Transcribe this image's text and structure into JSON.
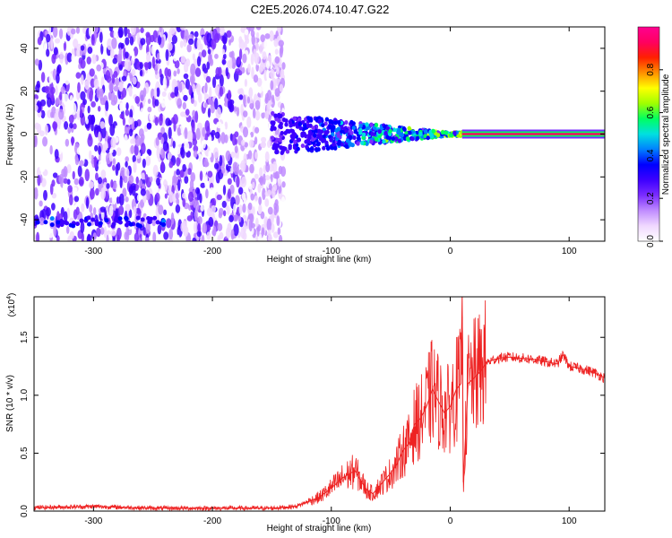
{
  "title": "C2E5.2026.074.10.47.G22",
  "colors": {
    "snr_line": "#ee2222",
    "frame": "#000000",
    "colorbar": [
      "#ffffff",
      "#f0d8ff",
      "#c08cff",
      "#7a2cff",
      "#3d00ff",
      "#0000ff",
      "#0080ff",
      "#00e0e0",
      "#00ff60",
      "#a0ff00",
      "#ffff00",
      "#ff9000",
      "#ff2000",
      "#ff0060",
      "#ff0090"
    ]
  },
  "chart_data": [
    {
      "type": "heatmap",
      "title": "C2E5.2026.074.10.47.G22",
      "xlabel": "Height of straight line (km)",
      "ylabel": "Frequency (Hz)",
      "xlim": [
        -350,
        130
      ],
      "ylim": [
        -50,
        50
      ],
      "xticks": [
        -300,
        -200,
        -100,
        0,
        100
      ],
      "xtick_labels": [
        "-300",
        "-200",
        "-100",
        "0",
        "100"
      ],
      "yticks": [
        -40,
        -20,
        0,
        20,
        40
      ],
      "ytick_labels": [
        "-40",
        "-20",
        "0",
        "20",
        "40"
      ],
      "noise_region_x": [
        -350,
        -150
      ],
      "centered_signal_x": [
        10,
        130
      ],
      "centered_signal_freq": 0,
      "colorbar": {
        "label": "Normalized spectral amplitude",
        "range": [
          0.0,
          1.0
        ],
        "ticks": [
          0.0,
          0.2,
          0.4,
          0.6,
          0.8
        ],
        "tick_labels": [
          "0.0",
          "0.2",
          "0.4",
          "0.6",
          "0.8"
        ]
      }
    },
    {
      "type": "line",
      "xlabel": "Height of straight line (km)",
      "ylabel": "SNR (10 * v/v)",
      "y_multiplier": "(x10",
      "y_multiplier_exp": "4",
      "y_multiplier_close": ")",
      "xlim": [
        -350,
        130
      ],
      "ylim": [
        0,
        18500
      ],
      "xticks": [
        -300,
        -200,
        -100,
        0,
        100
      ],
      "xtick_labels": [
        "-300",
        "-200",
        "-100",
        "0",
        "100"
      ],
      "yticks": [
        0,
        5000,
        10000,
        15000
      ],
      "ytick_labels": [
        "0.0",
        "0.5",
        "1.0",
        "1.5"
      ],
      "series": [
        {
          "name": "SNR",
          "x": [
            -350,
            -300,
            -250,
            -200,
            -150,
            -130,
            -110,
            -100,
            -90,
            -80,
            -75,
            -70,
            -65,
            -60,
            -55,
            -50,
            -45,
            -40,
            -35,
            -30,
            -25,
            -20,
            -15,
            -10,
            -5,
            0,
            5,
            9,
            10,
            11,
            15,
            20,
            25,
            30,
            40,
            50,
            60,
            70,
            80,
            90,
            95,
            100,
            110,
            120,
            130
          ],
          "y": [
            300,
            400,
            250,
            250,
            250,
            400,
            1200,
            2000,
            2900,
            3500,
            2600,
            1800,
            1500,
            2100,
            2700,
            3300,
            4000,
            5200,
            5800,
            7500,
            8000,
            9000,
            10500,
            9500,
            8500,
            9000,
            10500,
            11000,
            18500,
            2500,
            11000,
            11500,
            12000,
            12800,
            13200,
            13300,
            13200,
            13100,
            12900,
            12700,
            13500,
            12500,
            12300,
            12000,
            11500
          ]
        }
      ]
    }
  ]
}
